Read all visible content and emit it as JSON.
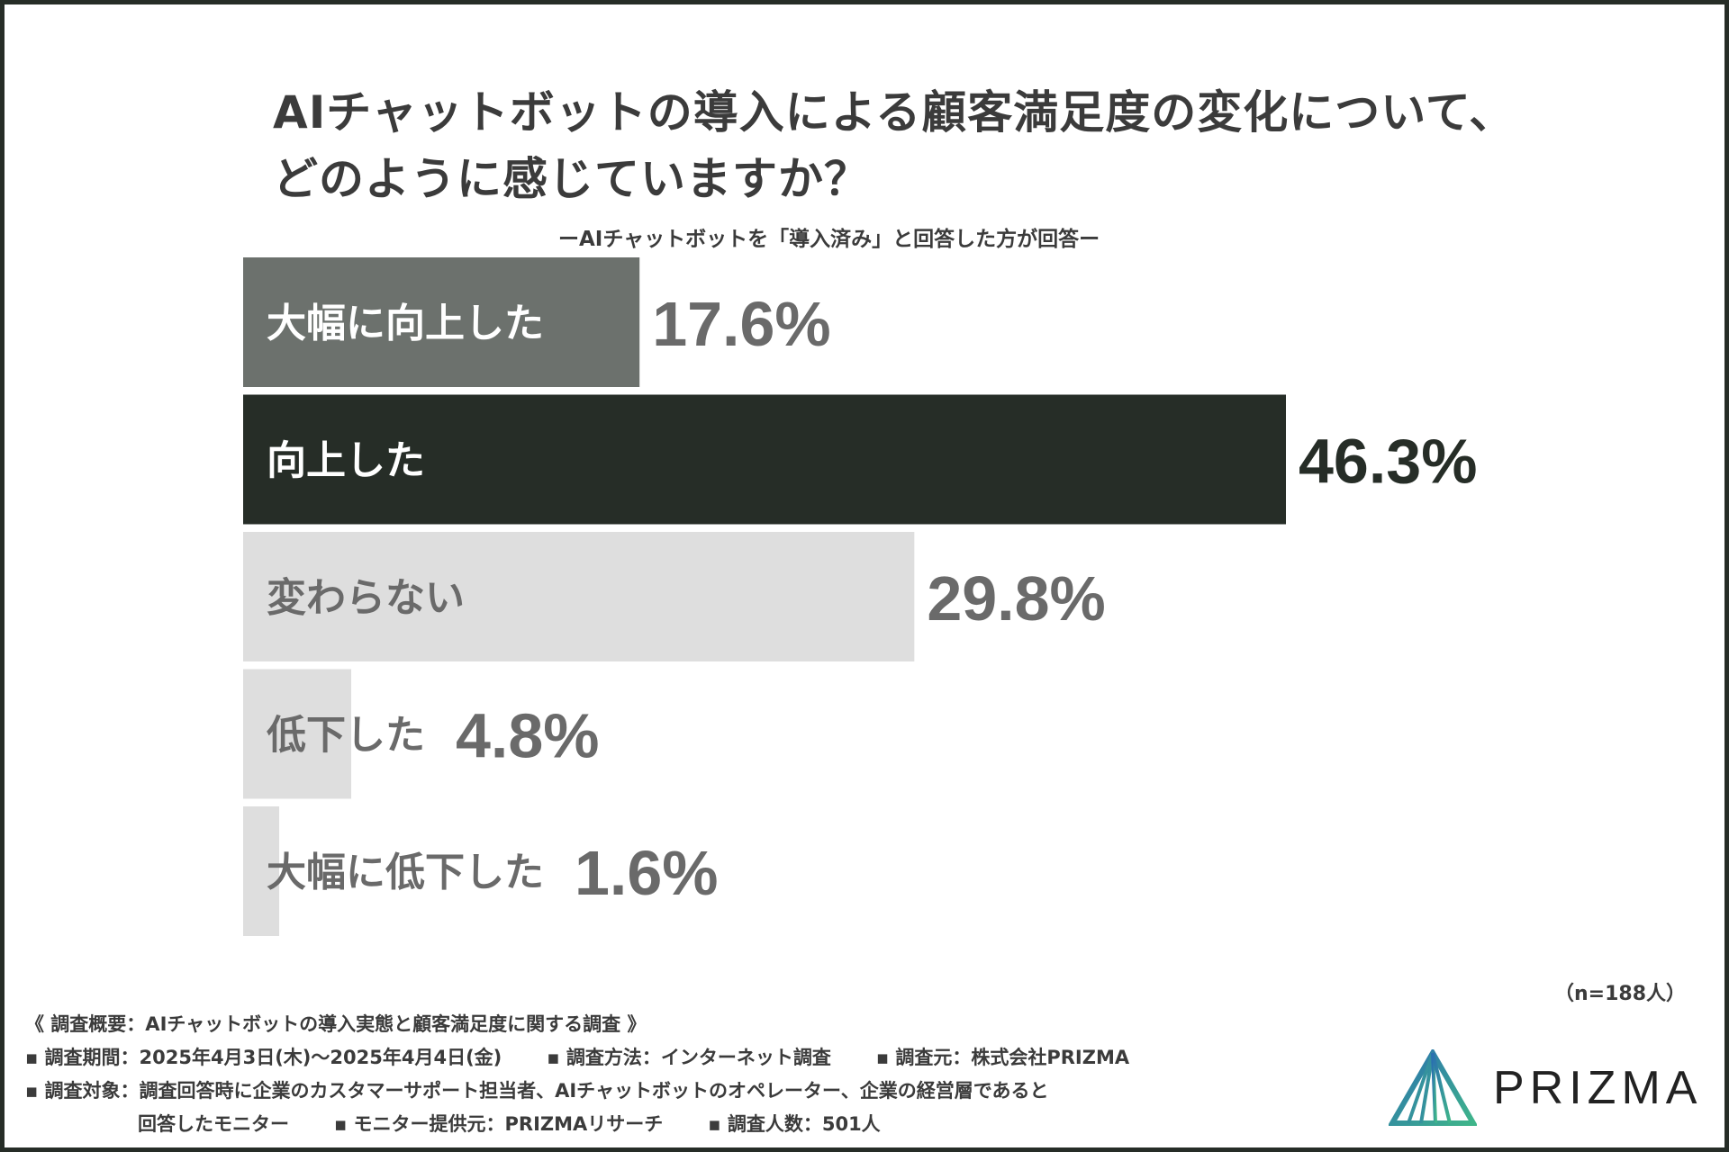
{
  "title": {
    "line1": "AIチャットボットの導入による顧客満足度の変化について、",
    "line2": "どのように感じていますか？"
  },
  "subtitle": "ーAIチャットボットを「導入済み」と回答した方が回答ー",
  "chart_data": {
    "type": "bar",
    "orientation": "horizontal",
    "categories": [
      "大幅に向上した",
      "向上した",
      "変わらない",
      "低下した",
      "大幅に低下した"
    ],
    "values": [
      17.6,
      46.3,
      29.8,
      4.8,
      1.6
    ],
    "value_labels": [
      "17.6%",
      "46.3%",
      "29.8%",
      "4.8%",
      "1.6%"
    ],
    "colors": [
      "#6c716d",
      "#262d27",
      "#dedede",
      "#dedede",
      "#dedede"
    ],
    "label_colors": [
      "#ffffff",
      "#ffffff",
      "#6a6a6a",
      "#6a6a6a",
      "#6a6a6a"
    ],
    "value_colors": [
      "#6a6a6a",
      "#262d27",
      "#6a6a6a",
      "#6a6a6a",
      "#6a6a6a"
    ],
    "title": "AIチャットボットの導入による顧客満足度の変化について、どのように感じていますか？",
    "xlabel": "",
    "ylabel": "",
    "xlim": [
      0,
      46.3
    ]
  },
  "n_label": "（n=188人）",
  "footer": {
    "overview": "《 調査概要：AIチャットボットの導入実態と顧客満足度に関する調査 》",
    "period": "▪ 調査期間：2025年4月3日(木)～2025年4月4日(金)",
    "method": "▪ 調査方法：インターネット調査",
    "source": "▪ 調査元：株式会社PRIZMA",
    "target": "▪ 調査対象：調査回答時に企業のカスタマーサポート担当者、AIチャットボットのオペレーター、企業の経営層であると",
    "target_cont": "回答したモニター",
    "provider": "▪ モニター提供元：PRIZMAリサーチ",
    "count": "▪ 調査人数：501人"
  },
  "brand": {
    "name": "PRIZMA",
    "logo_icon": "prizma-triangle-logo-icon"
  }
}
